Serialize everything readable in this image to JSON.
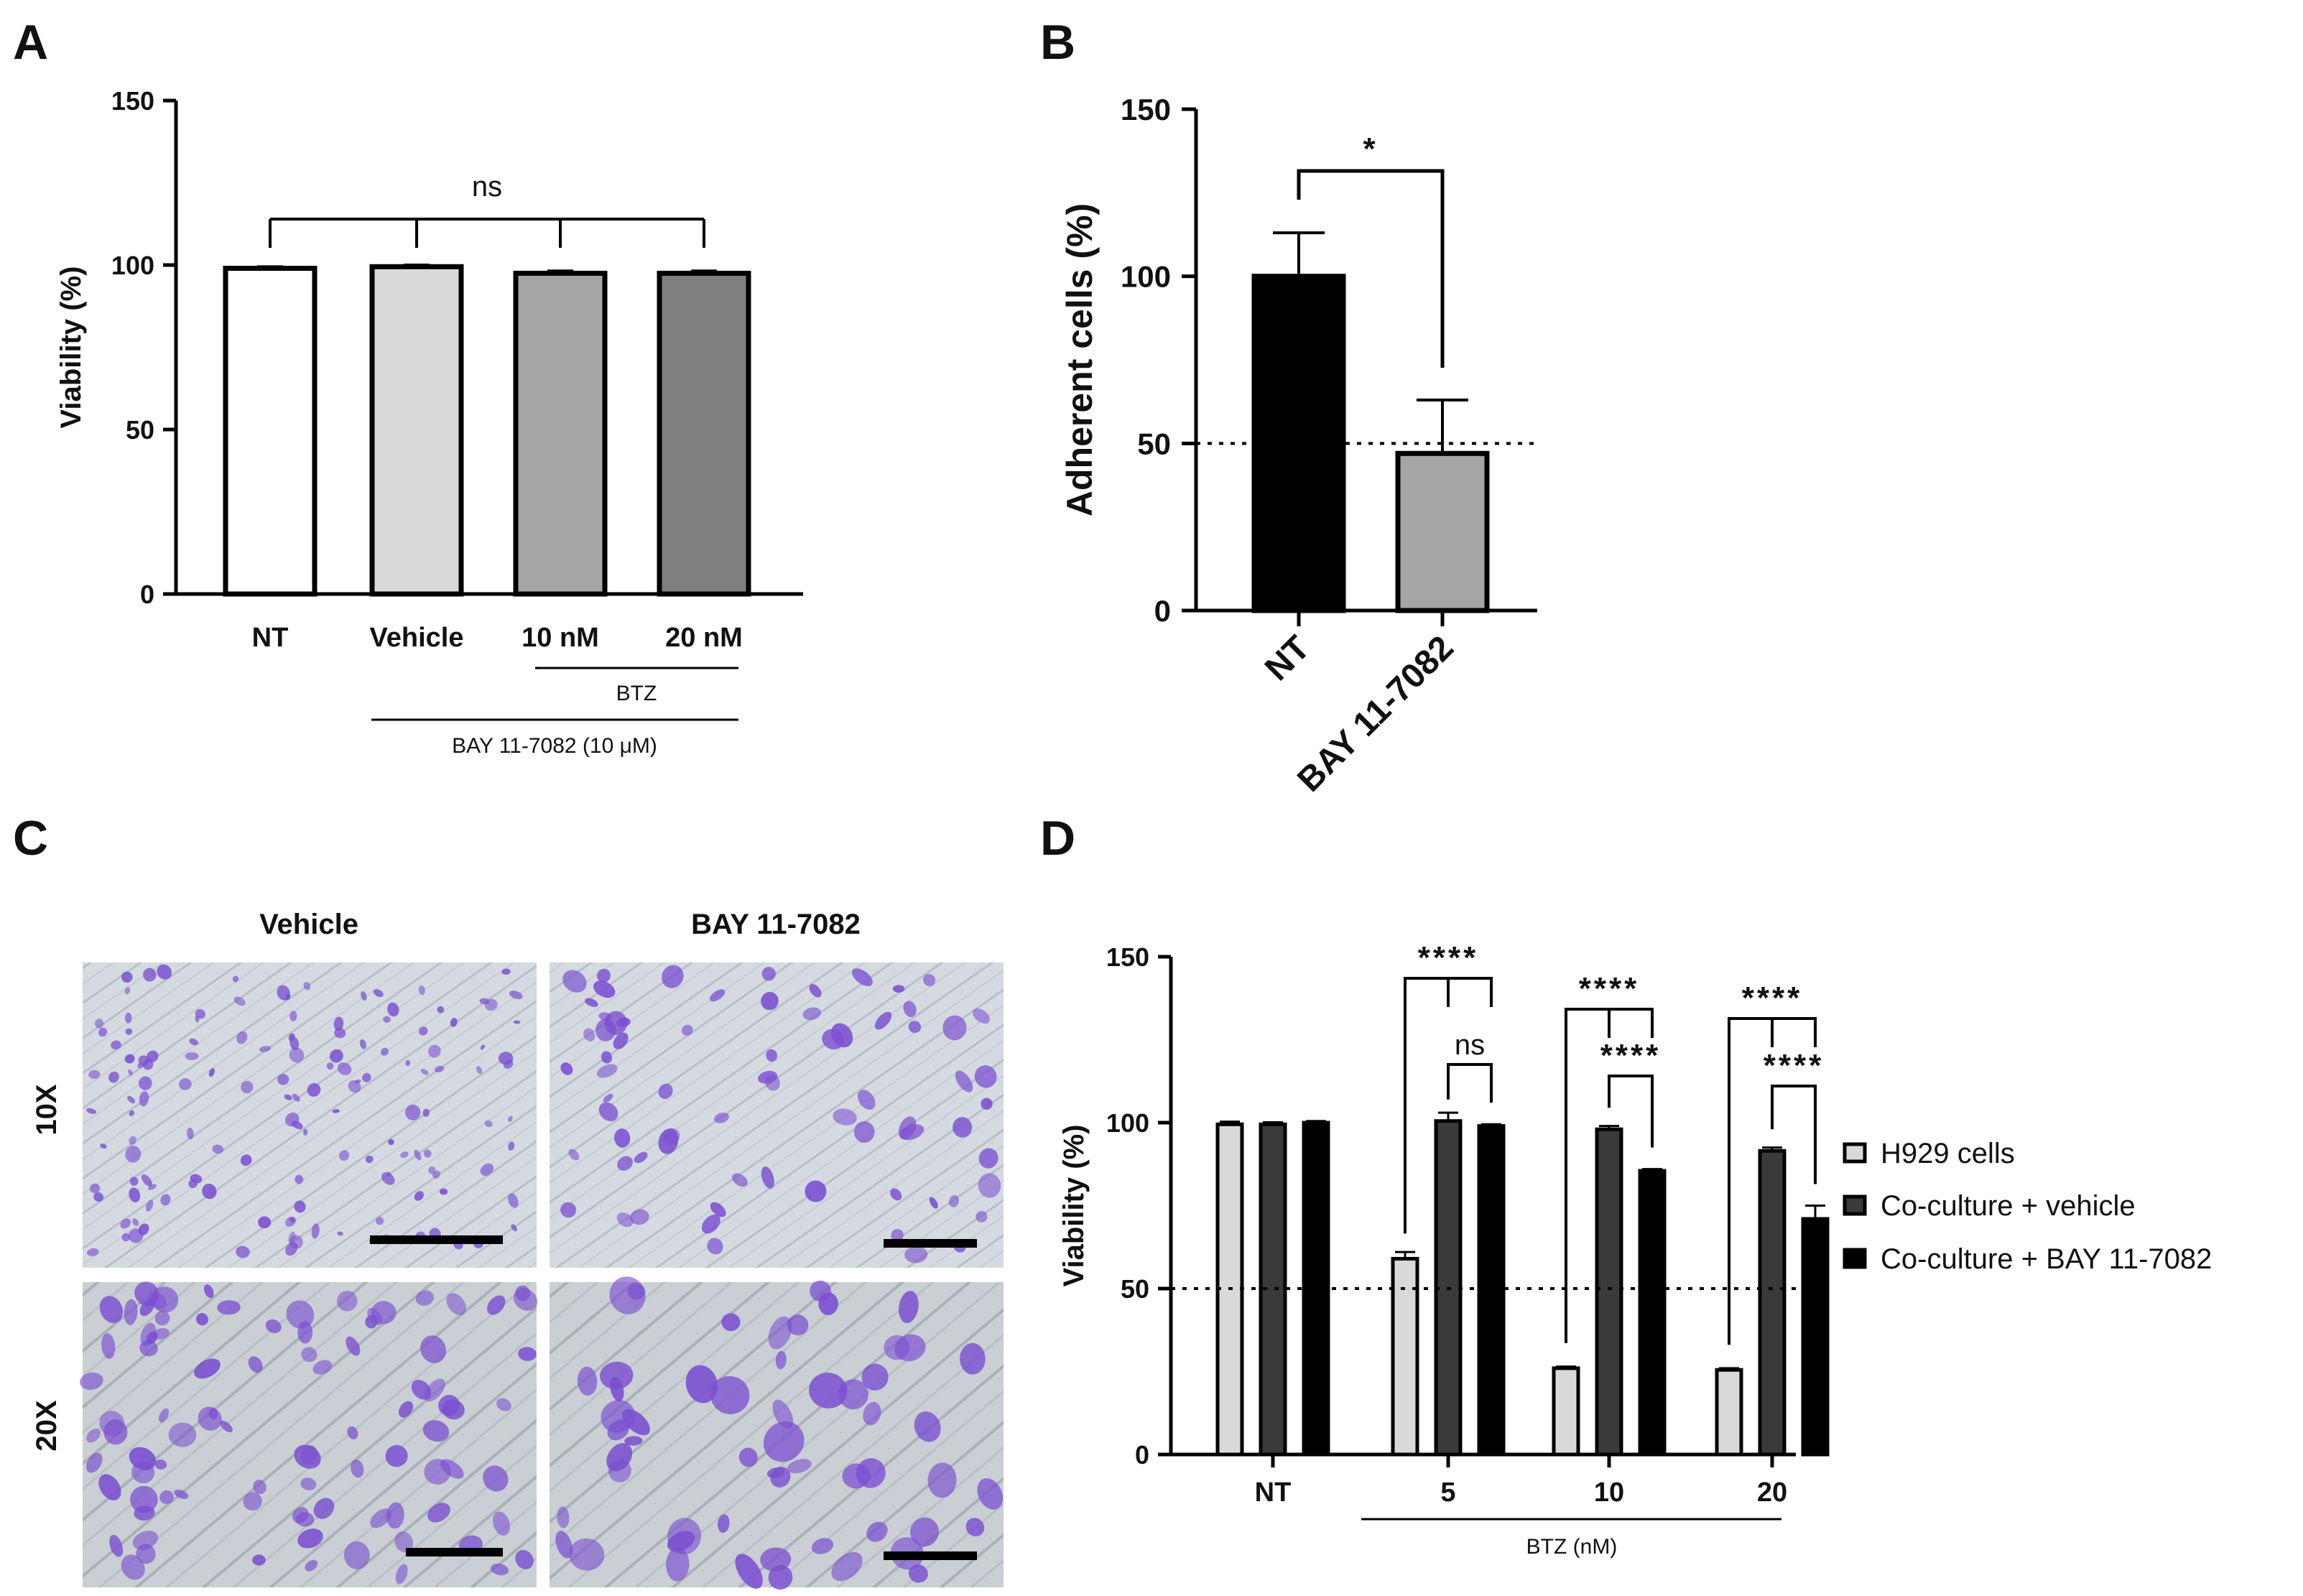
{
  "panels": {
    "A": {
      "letter": "A"
    },
    "B": {
      "letter": "B"
    },
    "C": {
      "letter": "C"
    },
    "D": {
      "letter": "D"
    }
  },
  "panel_c": {
    "col_labels": [
      "Vehicle",
      "BAY 11-7082"
    ],
    "row_labels": [
      "10X",
      "20X"
    ],
    "stain_color": "#7b4fd1"
  },
  "chart_data": [
    {
      "id": "A",
      "type": "bar",
      "ylabel": "Viability (%)",
      "ylim": [
        0,
        150
      ],
      "yticks": [
        0,
        50,
        100,
        150
      ],
      "categories": [
        "NT",
        "Vehicle",
        "10 nM",
        "20 nM"
      ],
      "values": [
        99,
        99.5,
        97.5,
        97.5
      ],
      "errors": [
        0.6,
        0.6,
        0.8,
        0.8
      ],
      "colors": [
        "#ffffff",
        "#d9d9d9",
        "#a6a6a6",
        "#7f7f7f"
      ],
      "groups": [
        {
          "label": "BTZ",
          "from": 2,
          "to": 3
        },
        {
          "label": "BAY 11-7082 (10 μM)",
          "from": 1,
          "to": 3
        }
      ],
      "annotations": [
        {
          "text": "ns",
          "pairs": [
            [
              0,
              1
            ],
            [
              0,
              2
            ],
            [
              0,
              3
            ]
          ]
        }
      ],
      "grid": false
    },
    {
      "id": "B",
      "type": "bar",
      "ylabel": "Adherent cells (%)",
      "ylim": [
        0,
        150
      ],
      "yticks": [
        0,
        50,
        100,
        150
      ],
      "categories": [
        "NT",
        "BAY 11-7082"
      ],
      "values": [
        100,
        47
      ],
      "errors": [
        13,
        16
      ],
      "colors": [
        "#000000",
        "#a6a6a6"
      ],
      "reference_line": 50,
      "annotations": [
        {
          "text": "*",
          "pairs": [
            [
              0,
              1
            ]
          ]
        }
      ],
      "grid": false
    },
    {
      "id": "D",
      "type": "bar",
      "ylabel": "Viability (%)",
      "ylim": [
        0,
        150
      ],
      "yticks": [
        0,
        50,
        100,
        150
      ],
      "categories": [
        "NT",
        "5",
        "10",
        "20"
      ],
      "group_label": "BTZ (nM)",
      "group_from": 1,
      "group_to": 3,
      "reference_line": 50,
      "series": [
        {
          "name": "H929 cells",
          "color": "#d9d9d9",
          "values": [
            99.5,
            59,
            26,
            25.5
          ],
          "errors": [
            0.8,
            2,
            0.5,
            0.5
          ]
        },
        {
          "name": "Co-culture + vehicle",
          "color": "#3a3a3a",
          "values": [
            99.5,
            100.5,
            98,
            91.5
          ],
          "errors": [
            0.6,
            2.5,
            1,
            1
          ]
        },
        {
          "name": "Co-culture + BAY 11-7082",
          "color": "#000000",
          "values": [
            100,
            99,
            85.5,
            71
          ],
          "errors": [
            0.5,
            0.5,
            0.5,
            4
          ]
        }
      ],
      "annotations": [
        {
          "category": 1,
          "top": "****",
          "bottom": "ns"
        },
        {
          "category": 2,
          "top": "****",
          "bottom": "****"
        },
        {
          "category": 3,
          "top": "****",
          "bottom": "****"
        }
      ],
      "legend_position": "right",
      "grid": false
    }
  ]
}
